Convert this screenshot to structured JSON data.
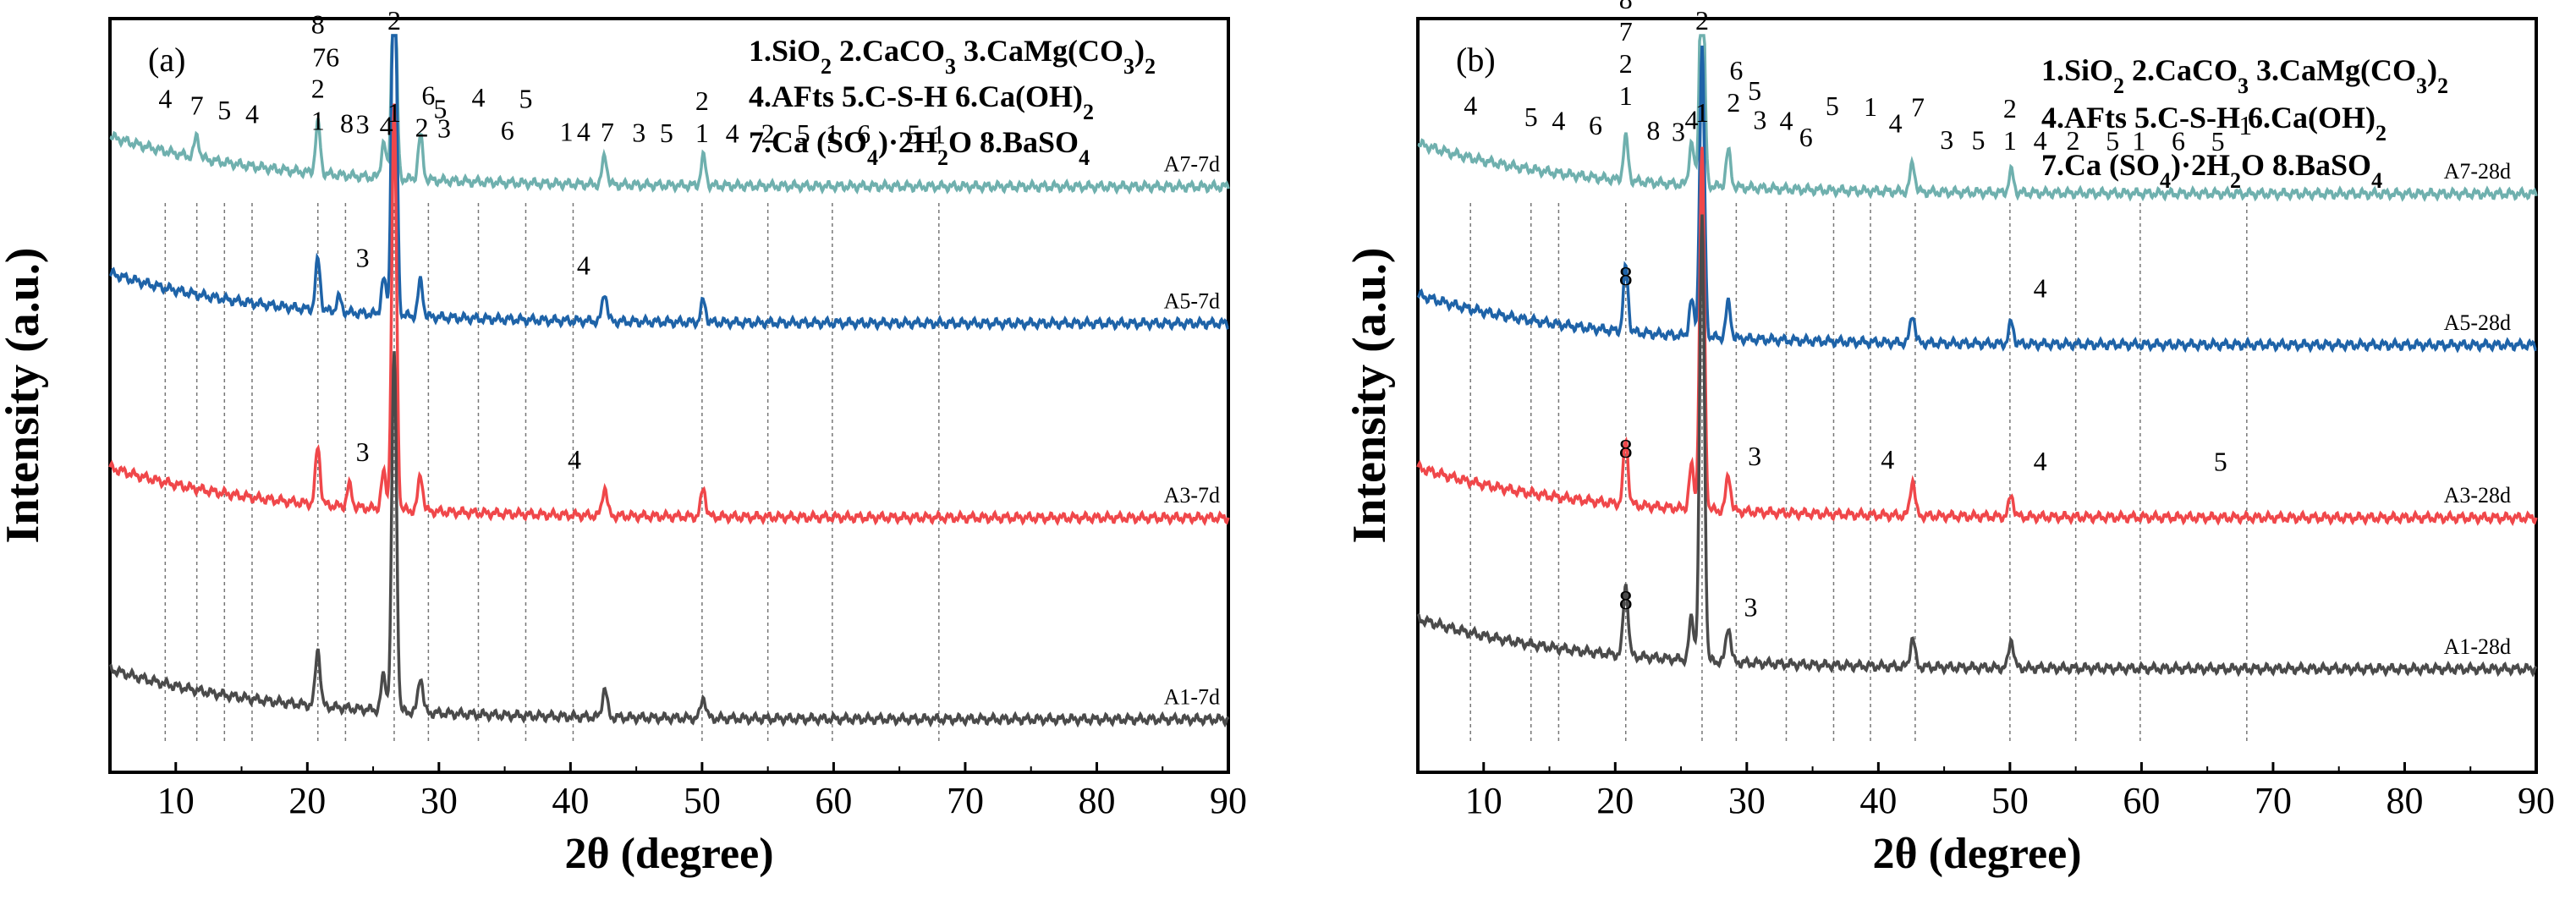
{
  "chart_data": [
    {
      "type": "line",
      "panel_label": "(a)",
      "xlabel": "2θ (degree)",
      "ylabel": "Intensity (a.u.)",
      "xlim": [
        5,
        90
      ],
      "x_ticks": [
        10,
        20,
        30,
        40,
        50,
        60,
        70,
        80,
        90
      ],
      "grid": false,
      "legend_position": "top-right",
      "legend_lines": [
        [
          {
            "t": "1.SiO"
          },
          {
            "t": "2",
            "sub": true
          },
          {
            "t": " 2.CaCO"
          },
          {
            "t": "3",
            "sub": true
          },
          {
            "t": " 3.CaMg(CO"
          },
          {
            "t": "3",
            "sub": true
          },
          {
            "t": ")"
          },
          {
            "t": "2",
            "sub": true
          }
        ],
        [
          {
            "t": "4.AFts 5.C-S-H  6.Ca(OH)"
          },
          {
            "t": "2",
            "sub": true
          }
        ],
        [
          {
            "t": "7.Ca (SO"
          },
          {
            "t": "4",
            "sub": true
          },
          {
            "t": ")·2H"
          },
          {
            "t": "2",
            "sub": true
          },
          {
            "t": "O 8.BaSO"
          },
          {
            "t": "4",
            "sub": true
          }
        ]
      ],
      "series": [
        {
          "name": "A7-7d",
          "color": "#6fb0ae",
          "baseline": 0.79,
          "peaks": [
            [
              20.8,
              0.07
            ],
            [
              26.6,
              0.32
            ],
            [
              28.6,
              0.06
            ],
            [
              42.6,
              0.04
            ],
            [
              50.1,
              0.04
            ],
            [
              11.6,
              0.03
            ],
            [
              25.8,
              0.05
            ]
          ]
        },
        {
          "name": "A5-7d",
          "color": "#1e63a8",
          "baseline": 0.6,
          "peaks": [
            [
              20.8,
              0.07
            ],
            [
              26.6,
              0.6
            ],
            [
              28.6,
              0.05
            ],
            [
              42.6,
              0.04
            ],
            [
              50.1,
              0.03
            ],
            [
              22.4,
              0.02
            ],
            [
              25.8,
              0.05
            ]
          ]
        },
        {
          "name": "A3-7d",
          "color": "#f0474a",
          "baseline": 0.33,
          "peaks": [
            [
              20.8,
              0.08
            ],
            [
              26.6,
              0.56
            ],
            [
              28.6,
              0.05
            ],
            [
              42.6,
              0.04
            ],
            [
              50.1,
              0.04
            ],
            [
              23.2,
              0.03
            ],
            [
              25.8,
              0.05
            ]
          ]
        },
        {
          "name": "A1-7d",
          "color": "#4a4a4a",
          "baseline": 0.05,
          "peaks": [
            [
              20.8,
              0.08
            ],
            [
              26.6,
              0.5
            ],
            [
              28.6,
              0.05
            ],
            [
              42.6,
              0.04
            ],
            [
              50.1,
              0.03
            ],
            [
              25.8,
              0.05
            ]
          ]
        }
      ],
      "annotations": [
        {
          "text": "4",
          "x": 9.2
        },
        {
          "text": "7",
          "x": 11.6
        },
        {
          "text": "5",
          "x": 13.7
        },
        {
          "text": "4",
          "x": 15.8
        },
        {
          "text": "2",
          "x": 20.8,
          "stack": 1
        },
        {
          "text": "1",
          "x": 20.8,
          "stack": 0
        },
        {
          "text": "8",
          "x": 20.8,
          "stack": 3
        },
        {
          "text": "76",
          "x": 21.4,
          "stack": 2
        },
        {
          "text": "8",
          "x": 23.0
        },
        {
          "text": "3",
          "x": 24.2
        },
        {
          "text": "4",
          "x": 26.0
        },
        {
          "text": "2",
          "x": 26.6,
          "stack": 1,
          "top": true
        },
        {
          "text": "1",
          "x": 26.6,
          "stack": 0,
          "top": true
        },
        {
          "text": "6",
          "x": 29.2,
          "stack": 1
        },
        {
          "text": "2",
          "x": 28.7
        },
        {
          "text": "5",
          "x": 30.1,
          "stack": 0.6
        },
        {
          "text": "3",
          "x": 30.4
        },
        {
          "text": "4",
          "x": 33.0,
          "stack": 1
        },
        {
          "text": "5",
          "x": 36.6,
          "stack": 1
        },
        {
          "text": "6",
          "x": 35.2
        },
        {
          "text": "1",
          "x": 39.7
        },
        {
          "text": "4",
          "x": 41.0
        },
        {
          "text": "7",
          "x": 42.8
        },
        {
          "text": "3",
          "x": 45.2
        },
        {
          "text": "5",
          "x": 47.3
        },
        {
          "text": "2",
          "x": 50.0,
          "stack": 1
        },
        {
          "text": "1",
          "x": 50.0
        },
        {
          "text": "4",
          "x": 52.3
        },
        {
          "text": "2",
          "x": 55.0
        },
        {
          "text": "5",
          "x": 57.7
        },
        {
          "text": "1",
          "x": 59.9
        },
        {
          "text": "6",
          "x": 62.3
        },
        {
          "text": "5",
          "x": 66.1
        },
        {
          "text": "1",
          "x": 68.0
        }
      ],
      "inline_labels": [
        {
          "series": "A5-7d",
          "text": "3",
          "x": 24.2
        },
        {
          "series": "A5-7d",
          "text": "4",
          "x": 41.0
        },
        {
          "series": "A3-7d",
          "text": "3",
          "x": 24.2
        },
        {
          "series": "A3-7d",
          "text": "4",
          "x": 40.3
        }
      ],
      "dashed_x": [
        9.2,
        11.6,
        13.7,
        15.8,
        20.8,
        22.9,
        26.6,
        29.2,
        33.0,
        36.6,
        40.2,
        50.0,
        55.0,
        59.9,
        68.0
      ]
    },
    {
      "type": "line",
      "panel_label": "(b)",
      "xlabel": "2θ (degree)",
      "ylabel": "Intensity (a.u.)",
      "xlim": [
        5,
        90
      ],
      "x_ticks": [
        10,
        20,
        30,
        40,
        50,
        60,
        70,
        80,
        90
      ],
      "grid": false,
      "legend_position": "top-right",
      "legend_lines": [
        [
          {
            "t": "1.SiO"
          },
          {
            "t": "2",
            "sub": true
          },
          {
            "t": " 2.CaCO"
          },
          {
            "t": "3",
            "sub": true
          },
          {
            "t": " 3.CaMg(CO"
          },
          {
            "t": "3",
            "sub": true
          },
          {
            "t": ")"
          },
          {
            "t": "2",
            "sub": true
          }
        ],
        [
          {
            "t": "4.AFts 5.C-S-H  6.Ca(OH)"
          },
          {
            "t": "2",
            "sub": true
          }
        ],
        [
          {
            "t": "7.Ca (SO"
          },
          {
            "t": "4",
            "sub": true
          },
          {
            "t": ")·2H"
          },
          {
            "t": "2",
            "sub": true
          },
          {
            "t": "O 8.BaSO"
          },
          {
            "t": "4",
            "sub": true
          }
        ]
      ],
      "series": [
        {
          "name": "A7-28d",
          "color": "#6fb0ae",
          "baseline": 0.78,
          "peaks": [
            [
              20.8,
              0.06
            ],
            [
              26.6,
              0.35
            ],
            [
              28.6,
              0.05
            ],
            [
              42.6,
              0.04
            ],
            [
              25.8,
              0.06
            ],
            [
              50.1,
              0.03
            ]
          ]
        },
        {
          "name": "A5-28d",
          "color": "#1e63a8",
          "baseline": 0.57,
          "peaks": [
            [
              20.8,
              0.09
            ],
            [
              26.6,
              0.4
            ],
            [
              28.6,
              0.05
            ],
            [
              42.6,
              0.04
            ],
            [
              25.8,
              0.05
            ],
            [
              50.1,
              0.03
            ]
          ]
        },
        {
          "name": "A3-28d",
          "color": "#f0474a",
          "baseline": 0.33,
          "peaks": [
            [
              20.8,
              0.09
            ],
            [
              26.6,
              0.5
            ],
            [
              28.6,
              0.05
            ],
            [
              42.6,
              0.05
            ],
            [
              25.8,
              0.06
            ],
            [
              50.1,
              0.03
            ]
          ]
        },
        {
          "name": "A1-28d",
          "color": "#4a4a4a",
          "baseline": 0.12,
          "peaks": [
            [
              20.8,
              0.1
            ],
            [
              26.6,
              0.62
            ],
            [
              28.6,
              0.05
            ],
            [
              42.6,
              0.04
            ],
            [
              25.8,
              0.06
            ],
            [
              50.1,
              0.04
            ]
          ]
        }
      ],
      "annotations": [
        {
          "text": "4",
          "x": 9.0
        },
        {
          "text": "5",
          "x": 13.6
        },
        {
          "text": "4",
          "x": 15.7
        },
        {
          "text": "6",
          "x": 18.5
        },
        {
          "text": "8",
          "x": 20.8,
          "stack": 4
        },
        {
          "text": "7",
          "x": 20.8,
          "stack": 3
        },
        {
          "text": "2",
          "x": 20.8,
          "stack": 2
        },
        {
          "text": "1",
          "x": 20.8,
          "stack": 1
        },
        {
          "text": "8",
          "x": 22.9
        },
        {
          "text": "3",
          "x": 24.8
        },
        {
          "text": "4",
          "x": 25.8,
          "stack": 0.4
        },
        {
          "text": "2",
          "x": 26.6,
          "stack": 1,
          "top": true
        },
        {
          "text": "1",
          "x": 26.6,
          "stack": 0,
          "top": true
        },
        {
          "text": "6",
          "x": 29.2,
          "stack": 2
        },
        {
          "text": "2",
          "x": 29.0,
          "stack": 1
        },
        {
          "text": "5",
          "x": 30.6,
          "stack": 1.4
        },
        {
          "text": "3",
          "x": 31.0,
          "stack": 0.5
        },
        {
          "text": "4",
          "x": 33.0,
          "stack": 0.5
        },
        {
          "text": "6",
          "x": 34.5
        },
        {
          "text": "5",
          "x": 36.5,
          "stack": 1
        },
        {
          "text": "1",
          "x": 39.4,
          "stack": 1
        },
        {
          "text": "4",
          "x": 41.3,
          "stack": 0.5
        },
        {
          "text": "7",
          "x": 43.0,
          "stack": 1
        },
        {
          "text": "3",
          "x": 45.2
        },
        {
          "text": "5",
          "x": 47.6
        },
        {
          "text": "2",
          "x": 50.0,
          "stack": 1
        },
        {
          "text": "1",
          "x": 50.0
        },
        {
          "text": "4",
          "x": 52.3
        },
        {
          "text": "2",
          "x": 54.8
        },
        {
          "text": "5",
          "x": 57.8
        },
        {
          "text": "1",
          "x": 59.8
        },
        {
          "text": "6",
          "x": 62.8
        },
        {
          "text": "5",
          "x": 65.8
        },
        {
          "text": "1",
          "x": 67.9,
          "stack": 0.5
        }
      ],
      "inline_labels": [
        {
          "series": "A5-28d",
          "text": "8",
          "x": 20.8
        },
        {
          "series": "A5-28d",
          "text": "4",
          "x": 52.3
        },
        {
          "series": "A3-28d",
          "text": "8",
          "x": 20.8
        },
        {
          "series": "A3-28d",
          "text": "3",
          "x": 30.6
        },
        {
          "series": "A3-28d",
          "text": "4",
          "x": 40.7
        },
        {
          "series": "A3-28d",
          "text": "4",
          "x": 52.3
        },
        {
          "series": "A3-28d",
          "text": "5",
          "x": 66.0
        },
        {
          "series": "A1-28d",
          "text": "8",
          "x": 20.8
        },
        {
          "series": "A1-28d",
          "text": "3",
          "x": 30.3
        }
      ],
      "dashed_x": [
        9.0,
        13.6,
        15.7,
        20.8,
        26.6,
        29.2,
        33.0,
        36.6,
        39.4,
        42.8,
        50.0,
        55.0,
        59.9,
        68.0
      ]
    }
  ]
}
